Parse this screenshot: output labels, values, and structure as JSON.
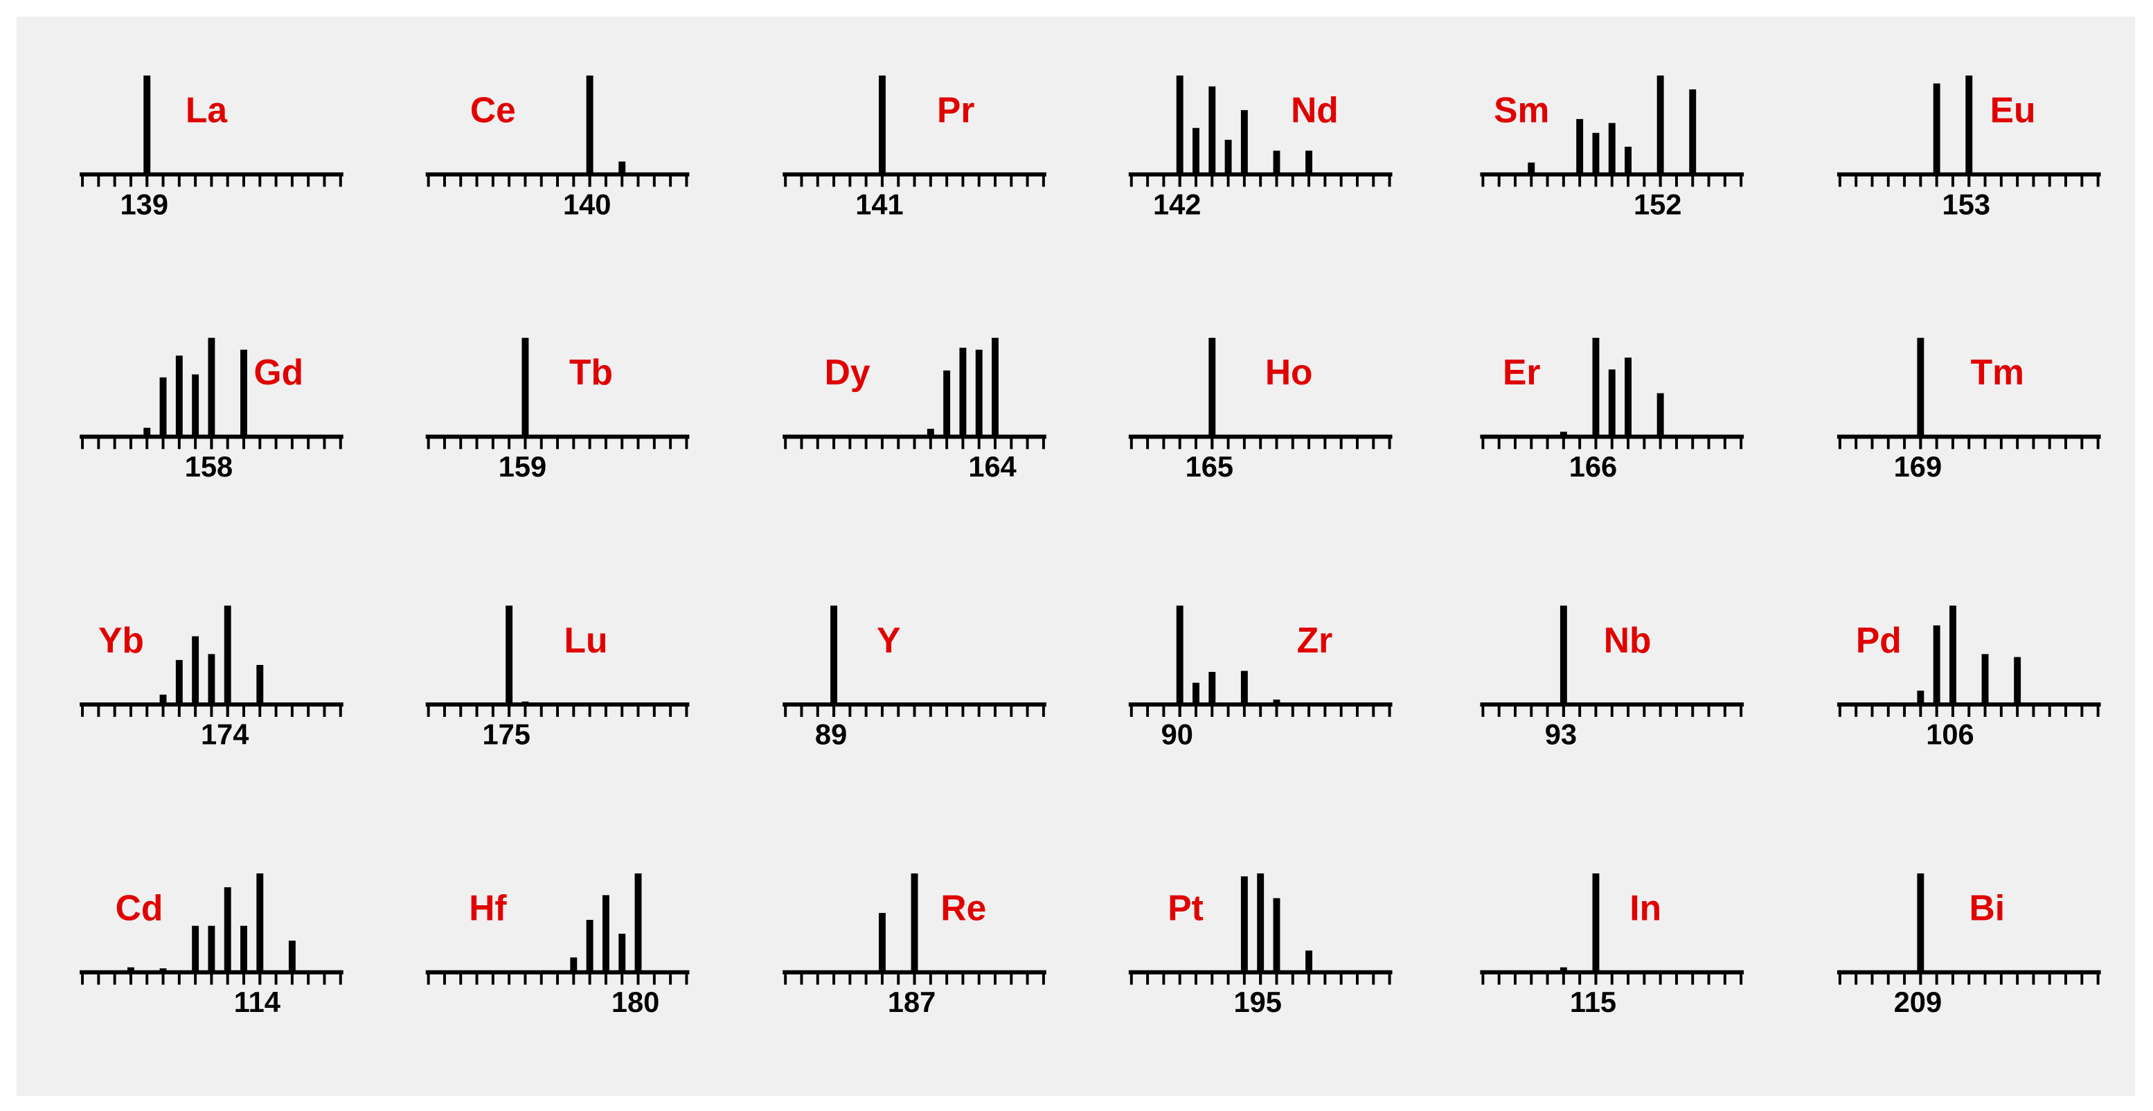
{
  "chart_data": [
    {
      "type": "bar",
      "title": "La",
      "title_color": "#e00000",
      "color": "#000000",
      "x": [
        138,
        139
      ],
      "values": [
        0.5,
        100
      ],
      "xlim": [
        135,
        151
      ],
      "ylim": [
        0,
        100
      ],
      "xticks": [
        139
      ]
    },
    {
      "type": "bar",
      "title": "Ce",
      "title_color": "#e00000",
      "color": "#000000",
      "x": [
        136,
        138,
        140,
        142
      ],
      "values": [
        0.5,
        0.5,
        100,
        13
      ],
      "xlim": [
        130,
        146
      ],
      "ylim": [
        0,
        100
      ],
      "xticks": [
        140
      ]
    },
    {
      "type": "bar",
      "title": "Pr",
      "title_color": "#e00000",
      "color": "#000000",
      "x": [
        141
      ],
      "values": [
        100
      ],
      "xlim": [
        135,
        151
      ],
      "ylim": [
        0,
        100
      ],
      "xticks": [
        141
      ]
    },
    {
      "type": "bar",
      "title": "Nd",
      "title_color": "#e00000",
      "color": "#000000",
      "x": [
        142,
        143,
        144,
        145,
        146,
        148,
        150
      ],
      "values": [
        100,
        47,
        89,
        35,
        65,
        24,
        24
      ],
      "xlim": [
        139,
        155
      ],
      "ylim": [
        0,
        100
      ],
      "xticks": [
        142
      ]
    },
    {
      "type": "bar",
      "title": "Sm",
      "title_color": "#e00000",
      "color": "#000000",
      "x": [
        144,
        147,
        148,
        149,
        150,
        152,
        154
      ],
      "values": [
        12,
        56,
        42,
        52,
        28,
        100,
        86
      ],
      "xlim": [
        141,
        157
      ],
      "ylim": [
        0,
        100
      ],
      "xticks": [
        152
      ]
    },
    {
      "type": "bar",
      "title": "Eu",
      "title_color": "#e00000",
      "color": "#000000",
      "x": [
        151,
        153
      ],
      "values": [
        92,
        100
      ],
      "xlim": [
        145,
        161
      ],
      "ylim": [
        0,
        100
      ],
      "xticks": [
        153
      ]
    },
    {
      "type": "bar",
      "title": "Gd",
      "title_color": "#e00000",
      "color": "#000000",
      "x": [
        152,
        154,
        155,
        156,
        157,
        158,
        160
      ],
      "values": [
        1,
        9,
        60,
        82,
        63,
        100,
        88
      ],
      "xlim": [
        150,
        166
      ],
      "ylim": [
        0,
        100
      ],
      "xticks": [
        158
      ]
    },
    {
      "type": "bar",
      "title": "Tb",
      "title_color": "#e00000",
      "color": "#000000",
      "x": [
        159
      ],
      "values": [
        100
      ],
      "xlim": [
        153,
        169
      ],
      "ylim": [
        0,
        100
      ],
      "xticks": [
        159
      ]
    },
    {
      "type": "bar",
      "title": "Dy",
      "title_color": "#e00000",
      "color": "#000000",
      "x": [
        156,
        158,
        160,
        161,
        162,
        163,
        164
      ],
      "values": [
        0.5,
        0.5,
        8,
        67,
        90,
        88,
        100
      ],
      "xlim": [
        151,
        167
      ],
      "ylim": [
        0,
        100
      ],
      "xticks": [
        164
      ]
    },
    {
      "type": "bar",
      "title": "Ho",
      "title_color": "#e00000",
      "color": "#000000",
      "x": [
        165
      ],
      "values": [
        100
      ],
      "xlim": [
        160,
        176
      ],
      "ylim": [
        0,
        100
      ],
      "xticks": [
        165
      ]
    },
    {
      "type": "bar",
      "title": "Er",
      "title_color": "#e00000",
      "color": "#000000",
      "x": [
        162,
        164,
        166,
        167,
        168,
        170
      ],
      "values": [
        0.5,
        5,
        100,
        68,
        80,
        44
      ],
      "xlim": [
        159,
        175
      ],
      "ylim": [
        0,
        100
      ],
      "xticks": [
        166
      ]
    },
    {
      "type": "bar",
      "title": "Tm",
      "title_color": "#e00000",
      "color": "#000000",
      "x": [
        169
      ],
      "values": [
        100
      ],
      "xlim": [
        164,
        180
      ],
      "ylim": [
        0,
        100
      ],
      "xticks": [
        169
      ]
    },
    {
      "type": "bar",
      "title": "Yb",
      "title_color": "#e00000",
      "color": "#000000",
      "x": [
        168,
        170,
        171,
        172,
        173,
        174,
        176
      ],
      "values": [
        0.5,
        10,
        45,
        69,
        51,
        100,
        40
      ],
      "xlim": [
        165,
        181
      ],
      "ylim": [
        0,
        100
      ],
      "xticks": [
        174
      ]
    },
    {
      "type": "bar",
      "title": "Lu",
      "title_color": "#e00000",
      "color": "#000000",
      "x": [
        175,
        176
      ],
      "values": [
        100,
        3
      ],
      "xlim": [
        170,
        186
      ],
      "ylim": [
        0,
        100
      ],
      "xticks": [
        175
      ]
    },
    {
      "type": "bar",
      "title": "Y",
      "title_color": "#e00000",
      "color": "#000000",
      "x": [
        89
      ],
      "values": [
        100
      ],
      "xlim": [
        86,
        102
      ],
      "ylim": [
        0,
        100
      ],
      "xticks": [
        89
      ]
    },
    {
      "type": "bar",
      "title": "Zr",
      "title_color": "#e00000",
      "color": "#000000",
      "x": [
        90,
        91,
        92,
        94,
        96
      ],
      "values": [
        100,
        22,
        33,
        34,
        5
      ],
      "xlim": [
        87,
        103
      ],
      "ylim": [
        0,
        100
      ],
      "xticks": [
        90
      ]
    },
    {
      "type": "bar",
      "title": "Nb",
      "title_color": "#e00000",
      "color": "#000000",
      "x": [
        93
      ],
      "values": [
        100
      ],
      "xlim": [
        88,
        104
      ],
      "ylim": [
        0,
        100
      ],
      "xticks": [
        93
      ]
    },
    {
      "type": "bar",
      "title": "Pd",
      "title_color": "#e00000",
      "color": "#000000",
      "x": [
        102,
        104,
        105,
        106,
        108,
        110
      ],
      "values": [
        2,
        14,
        80,
        100,
        51,
        48
      ],
      "xlim": [
        99,
        115
      ],
      "ylim": [
        0,
        100
      ],
      "xticks": [
        106
      ]
    },
    {
      "type": "bar",
      "title": "Cd",
      "title_color": "#e00000",
      "color": "#000000",
      "x": [
        106,
        108,
        110,
        111,
        112,
        113,
        114,
        116
      ],
      "values": [
        5,
        4,
        47,
        47,
        86,
        47,
        100,
        32
      ],
      "xlim": [
        103,
        119
      ],
      "ylim": [
        0,
        100
      ],
      "xticks": [
        114
      ]
    },
    {
      "type": "bar",
      "title": "Hf",
      "title_color": "#e00000",
      "color": "#000000",
      "x": [
        174,
        176,
        177,
        178,
        179,
        180
      ],
      "values": [
        0.5,
        15,
        53,
        78,
        39,
        100
      ],
      "xlim": [
        167,
        183
      ],
      "ylim": [
        0,
        100
      ],
      "xticks": [
        180
      ]
    },
    {
      "type": "bar",
      "title": "Re",
      "title_color": "#e00000",
      "color": "#000000",
      "x": [
        185,
        187
      ],
      "values": [
        60,
        100
      ],
      "xlim": [
        179,
        195
      ],
      "ylim": [
        0,
        100
      ],
      "xticks": [
        187
      ]
    },
    {
      "type": "bar",
      "title": "Pt",
      "title_color": "#e00000",
      "color": "#000000",
      "x": [
        190,
        192,
        194,
        195,
        196,
        198
      ],
      "values": [
        0.5,
        0.5,
        97,
        100,
        75,
        22
      ],
      "xlim": [
        187,
        203
      ],
      "ylim": [
        0,
        100
      ],
      "xticks": [
        195
      ]
    },
    {
      "type": "bar",
      "title": "In",
      "title_color": "#e00000",
      "color": "#000000",
      "x": [
        113,
        115
      ],
      "values": [
        5,
        100
      ],
      "xlim": [
        108,
        124
      ],
      "ylim": [
        0,
        100
      ],
      "xticks": [
        115
      ]
    },
    {
      "type": "bar",
      "title": "Bi",
      "title_color": "#e00000",
      "color": "#000000",
      "x": [
        209
      ],
      "values": [
        100
      ],
      "xlim": [
        204,
        220
      ],
      "ylim": [
        0,
        100
      ],
      "xticks": [
        209
      ]
    }
  ]
}
